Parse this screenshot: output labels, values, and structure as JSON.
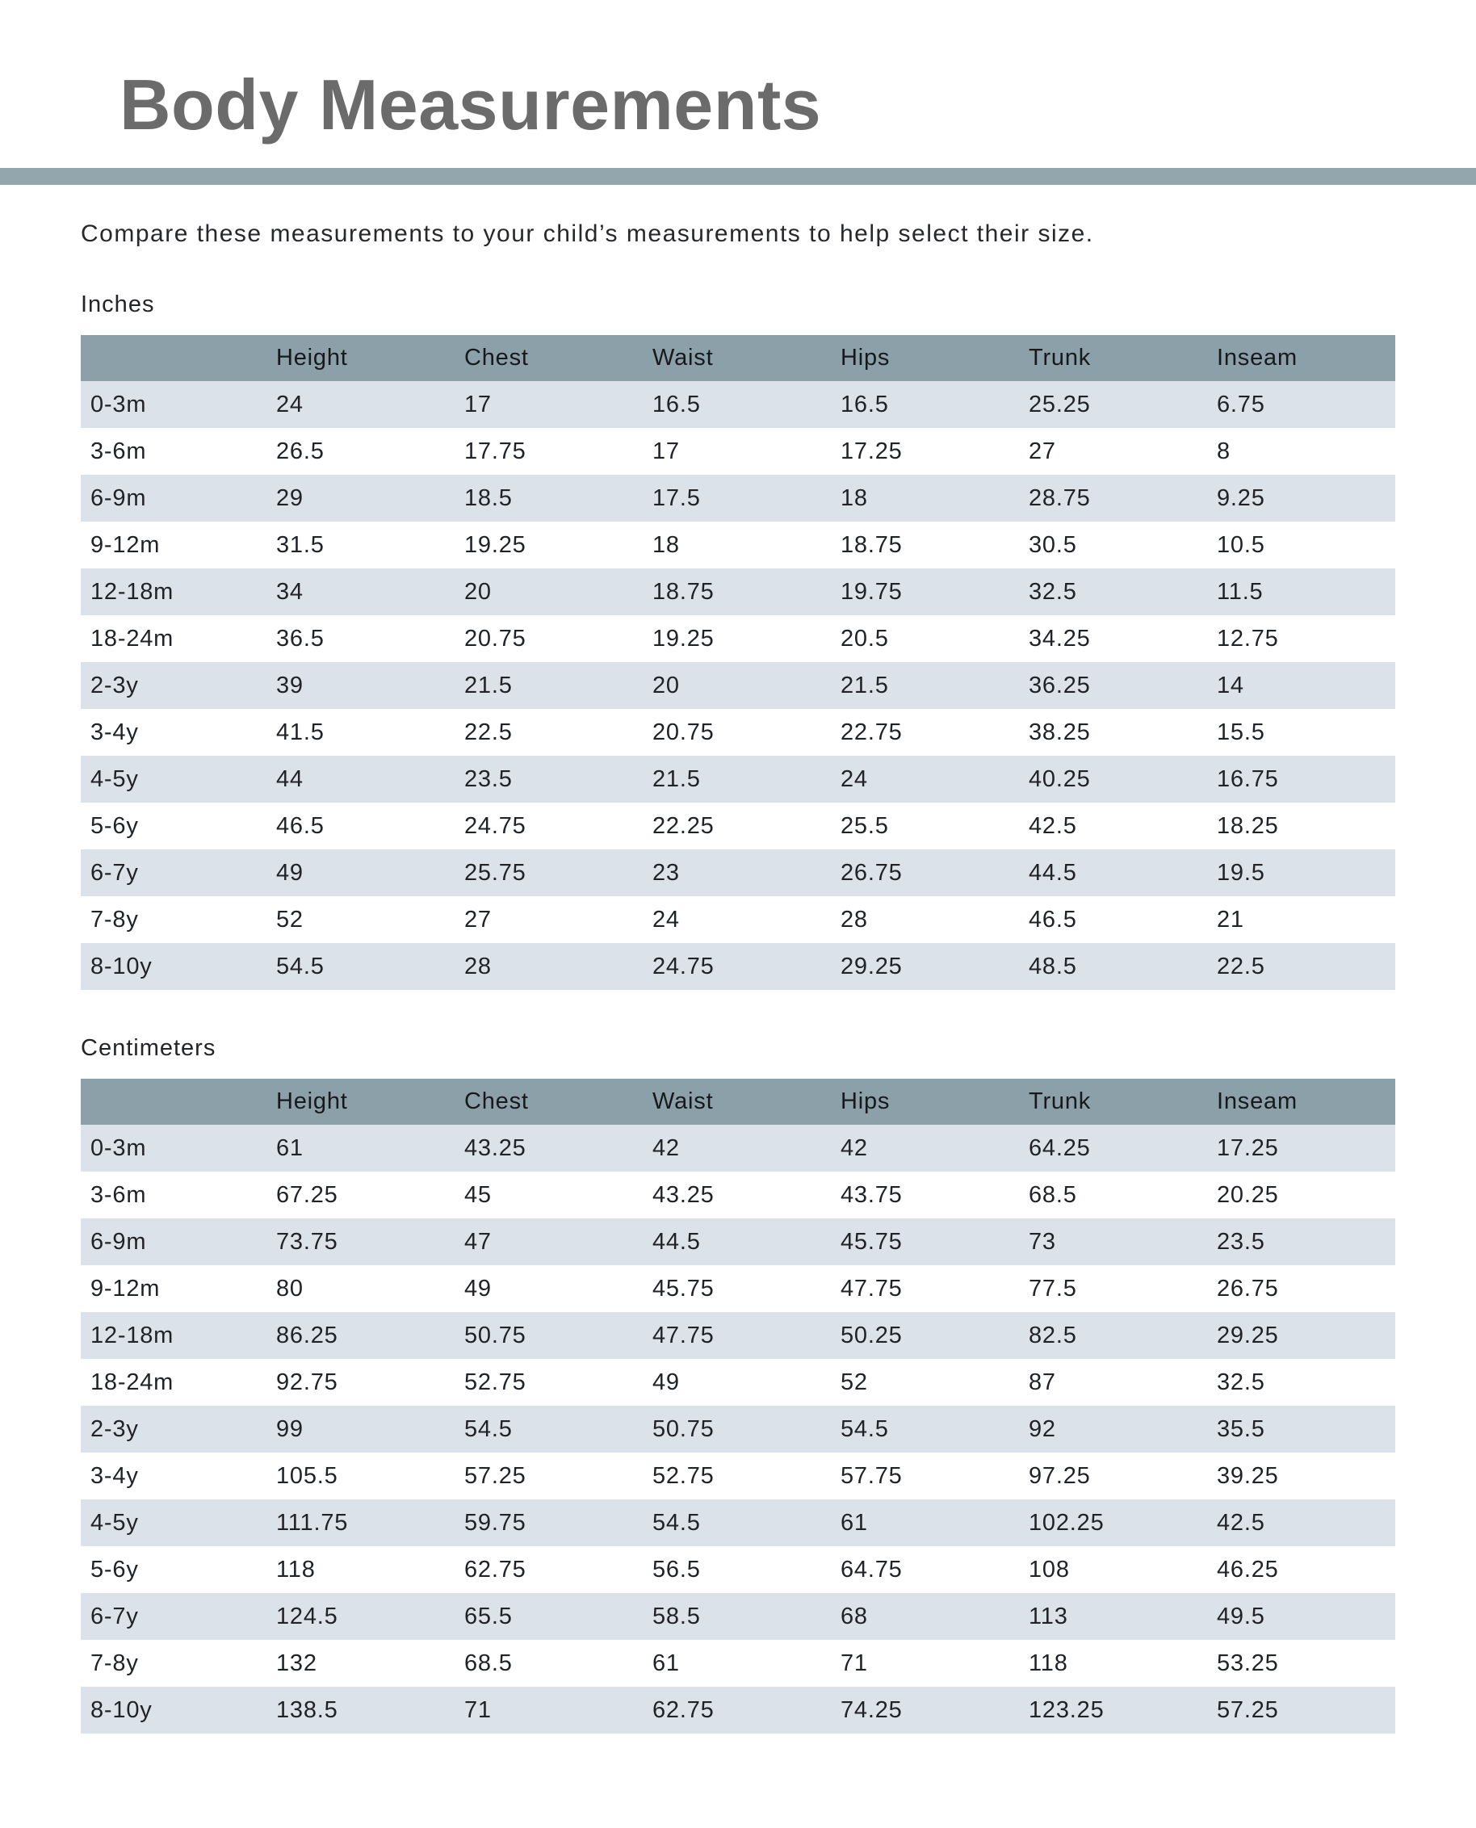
{
  "page": {
    "title": "Body Measurements",
    "intro": "Compare these measurements to your child’s measurements to help select their size."
  },
  "colors": {
    "title_text": "#6B6B6B",
    "divider_bar": "#93A5AD",
    "table_header_bg": "#8BA0A8",
    "row_stripe_bg": "#DCE2E9",
    "body_text": "#1F2327"
  },
  "columns": [
    "Height",
    "Chest",
    "Waist",
    "Hips",
    "Trunk",
    "Inseam"
  ],
  "tables": [
    {
      "unit_label": "Inches",
      "rows": [
        {
          "label": "0-3m",
          "values": [
            "24",
            "17",
            "16.5",
            "16.5",
            "25.25",
            "6.75"
          ]
        },
        {
          "label": "3-6m",
          "values": [
            "26.5",
            "17.75",
            "17",
            "17.25",
            "27",
            "8"
          ]
        },
        {
          "label": "6-9m",
          "values": [
            "29",
            "18.5",
            "17.5",
            "18",
            "28.75",
            "9.25"
          ]
        },
        {
          "label": "9-12m",
          "values": [
            "31.5",
            "19.25",
            "18",
            "18.75",
            "30.5",
            "10.5"
          ]
        },
        {
          "label": "12-18m",
          "values": [
            "34",
            "20",
            "18.75",
            "19.75",
            "32.5",
            "11.5"
          ]
        },
        {
          "label": "18-24m",
          "values": [
            "36.5",
            "20.75",
            "19.25",
            "20.5",
            "34.25",
            "12.75"
          ]
        },
        {
          "label": "2-3y",
          "values": [
            "39",
            "21.5",
            "20",
            "21.5",
            "36.25",
            "14"
          ]
        },
        {
          "label": "3-4y",
          "values": [
            "41.5",
            "22.5",
            "20.75",
            "22.75",
            "38.25",
            "15.5"
          ]
        },
        {
          "label": "4-5y",
          "values": [
            "44",
            "23.5",
            "21.5",
            "24",
            "40.25",
            "16.75"
          ]
        },
        {
          "label": "5-6y",
          "values": [
            "46.5",
            "24.75",
            "22.25",
            "25.5",
            "42.5",
            "18.25"
          ]
        },
        {
          "label": "6-7y",
          "values": [
            "49",
            "25.75",
            "23",
            "26.75",
            "44.5",
            "19.5"
          ]
        },
        {
          "label": "7-8y",
          "values": [
            "52",
            "27",
            "24",
            "28",
            "46.5",
            "21"
          ]
        },
        {
          "label": "8-10y",
          "values": [
            "54.5",
            "28",
            "24.75",
            "29.25",
            "48.5",
            "22.5"
          ]
        }
      ]
    },
    {
      "unit_label": "Centimeters",
      "rows": [
        {
          "label": "0-3m",
          "values": [
            "61",
            "43.25",
            "42",
            "42",
            "64.25",
            "17.25"
          ]
        },
        {
          "label": "3-6m",
          "values": [
            "67.25",
            "45",
            "43.25",
            "43.75",
            "68.5",
            "20.25"
          ]
        },
        {
          "label": "6-9m",
          "values": [
            "73.75",
            "47",
            "44.5",
            "45.75",
            "73",
            "23.5"
          ]
        },
        {
          "label": "9-12m",
          "values": [
            "80",
            "49",
            "45.75",
            "47.75",
            "77.5",
            "26.75"
          ]
        },
        {
          "label": "12-18m",
          "values": [
            "86.25",
            "50.75",
            "47.75",
            "50.25",
            "82.5",
            "29.25"
          ]
        },
        {
          "label": "18-24m",
          "values": [
            "92.75",
            "52.75",
            "49",
            "52",
            "87",
            "32.5"
          ]
        },
        {
          "label": "2-3y",
          "values": [
            "99",
            "54.5",
            "50.75",
            "54.5",
            "92",
            "35.5"
          ]
        },
        {
          "label": "3-4y",
          "values": [
            "105.5",
            "57.25",
            "52.75",
            "57.75",
            "97.25",
            "39.25"
          ]
        },
        {
          "label": "4-5y",
          "values": [
            "111.75",
            "59.75",
            "54.5",
            "61",
            "102.25",
            "42.5"
          ]
        },
        {
          "label": "5-6y",
          "values": [
            "118",
            "62.75",
            "56.5",
            "64.75",
            "108",
            "46.25"
          ]
        },
        {
          "label": "6-7y",
          "values": [
            "124.5",
            "65.5",
            "58.5",
            "68",
            "113",
            "49.5"
          ]
        },
        {
          "label": "7-8y",
          "values": [
            "132",
            "68.5",
            "61",
            "71",
            "118",
            "53.25"
          ]
        },
        {
          "label": "8-10y",
          "values": [
            "138.5",
            "71",
            "62.75",
            "74.25",
            "123.25",
            "57.25"
          ]
        }
      ]
    }
  ]
}
